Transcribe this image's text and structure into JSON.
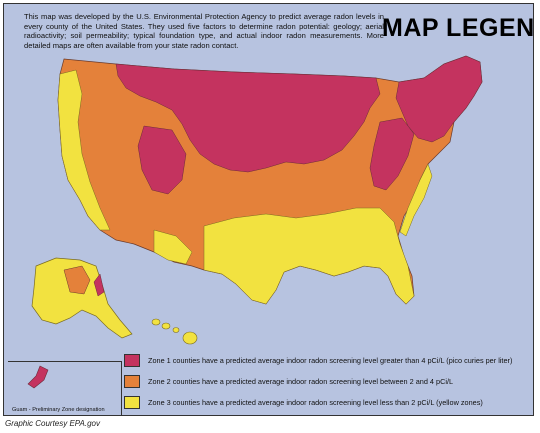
{
  "intro_text": "This map was developed by the U.S. Environmental Protection Agency to predict average radon levels in every county of the United States. They used five factors to determine radon potential: geology; aerial radioactivity; soil permeability; typical foundation type, and actual indoor radon measurements. More detailed maps are often available from your state radon contact.",
  "legend_title": "MAP LEGEND",
  "zones": [
    {
      "color": "#c4335f",
      "label": "Zone 1 counties have a predicted average indoor radon screening level greater than 4 pCi/L (pico curies per liter)"
    },
    {
      "color": "#e4813a",
      "label": "Zone 2 counties have a predicted average indoor radon screening level between 2 and 4 pCi/L"
    },
    {
      "color": "#f2e240",
      "label": "Zone 3 counties have a predicted average indoor radon screening level less than 2 pCi/L (yellow zones)"
    }
  ],
  "guam_label": "Guam - Preliminary Zone designation",
  "credit": "Graphic Courtesy EPA.gov",
  "colors": {
    "background": "#b7c3e0",
    "zone1": "#c4335f",
    "zone2": "#e4813a",
    "zone3": "#f2e240"
  }
}
